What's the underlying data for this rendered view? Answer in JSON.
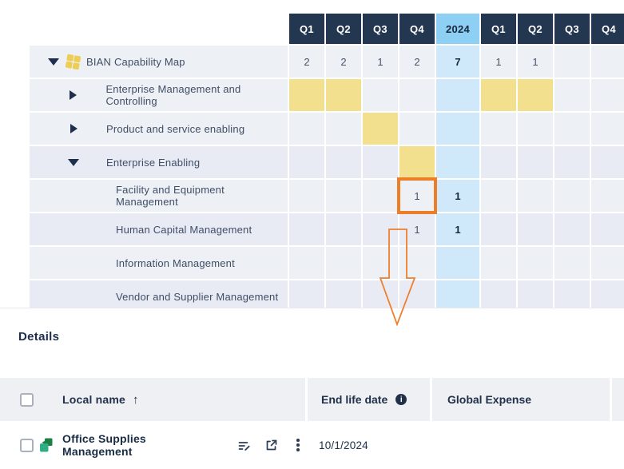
{
  "heatmap": {
    "columns": [
      {
        "label": "Q1",
        "type": "quarter"
      },
      {
        "label": "Q2",
        "type": "quarter"
      },
      {
        "label": "Q3",
        "type": "quarter"
      },
      {
        "label": "Q4",
        "type": "quarter"
      },
      {
        "label": "2024",
        "type": "year"
      },
      {
        "label": "Q1",
        "type": "quarter"
      },
      {
        "label": "Q2",
        "type": "quarter"
      },
      {
        "label": "Q3",
        "type": "quarter"
      },
      {
        "label": "Q4",
        "type": "quarter"
      }
    ],
    "rows": [
      {
        "label": "BIAN Capability Map",
        "level": 0,
        "expander": "expanded",
        "icon": "capability-map-icon",
        "tint": "a",
        "cells": [
          {
            "text": "2"
          },
          {
            "text": "2"
          },
          {
            "text": "1"
          },
          {
            "text": "2"
          },
          {
            "text": "7"
          },
          {
            "text": "1"
          },
          {
            "text": "1"
          },
          {},
          {}
        ]
      },
      {
        "label": "Enterprise Management and Controlling",
        "level": 1,
        "expander": "collapsed",
        "icon": "capability-icon",
        "tint": "a",
        "cells": [
          {
            "fill": "yellow"
          },
          {
            "fill": "yellow"
          },
          {},
          {},
          {},
          {
            "fill": "yellow"
          },
          {
            "fill": "yellow"
          },
          {},
          {}
        ]
      },
      {
        "label": "Product and service enabling",
        "level": 1,
        "expander": "collapsed",
        "icon": "capability-icon",
        "tint": "a",
        "cells": [
          {},
          {},
          {
            "fill": "yellow"
          },
          {},
          {},
          {},
          {},
          {},
          {}
        ]
      },
      {
        "label": "Enterprise Enabling",
        "level": 1,
        "expander": "expanded",
        "icon": "capability-icon",
        "tint": "b",
        "cells": [
          {},
          {},
          {},
          {
            "fill": "yellow"
          },
          {},
          {},
          {},
          {},
          {}
        ]
      },
      {
        "label": "Facility and Equipment Management",
        "level": 2,
        "expander": "none",
        "icon": "capability-icon",
        "tint": "a",
        "cells": [
          {},
          {},
          {},
          {
            "text": "1",
            "selected": true
          },
          {
            "text": "1"
          },
          {},
          {},
          {},
          {}
        ]
      },
      {
        "label": "Human Capital Management",
        "level": 2,
        "expander": "none",
        "icon": "capability-icon",
        "tint": "b",
        "cells": [
          {},
          {},
          {},
          {
            "text": "1"
          },
          {
            "text": "1"
          },
          {},
          {},
          {},
          {}
        ]
      },
      {
        "label": "Information Management",
        "level": 2,
        "expander": "none",
        "icon": "capability-icon",
        "tint": "a",
        "cells": [
          {},
          {},
          {},
          {},
          {},
          {},
          {},
          {},
          {}
        ]
      },
      {
        "label": "Vendor and Supplier Management",
        "level": 2,
        "expander": "none",
        "icon": "capability-icon",
        "tint": "b",
        "cells": [
          {},
          {},
          {},
          {},
          {},
          {},
          {},
          {},
          {}
        ]
      }
    ],
    "annotation": {
      "selected_cell": {
        "row": "Facility and Equipment Management",
        "column": "Q4",
        "value": "1"
      },
      "arrow_color": "#ee7f2d",
      "highlight_color": "#ee7d28"
    }
  },
  "details": {
    "title": "Details",
    "columns": {
      "local_name": "Local name",
      "end_life_date": "End life date",
      "global_expense": "Global Expense"
    },
    "sort": {
      "column": "local_name",
      "direction": "ascending"
    },
    "rows": [
      {
        "name": "Office Supplies Management",
        "end_life_date": "10/1/2024",
        "global_expense": ""
      }
    ]
  },
  "icons": {
    "sort_ascending": "↑",
    "info": "i"
  },
  "colors": {
    "header_dark": "#243750",
    "header_year_blue": "#8ed0f3",
    "year_column_blue": "#cfe9fa",
    "heat_yellow": "#f2e08f",
    "selection_orange": "#ee7d28",
    "capability_yellow": "#f0d469",
    "app_icon_green_dark": "#1b7e44",
    "app_icon_green_teal": "#2fae86"
  }
}
